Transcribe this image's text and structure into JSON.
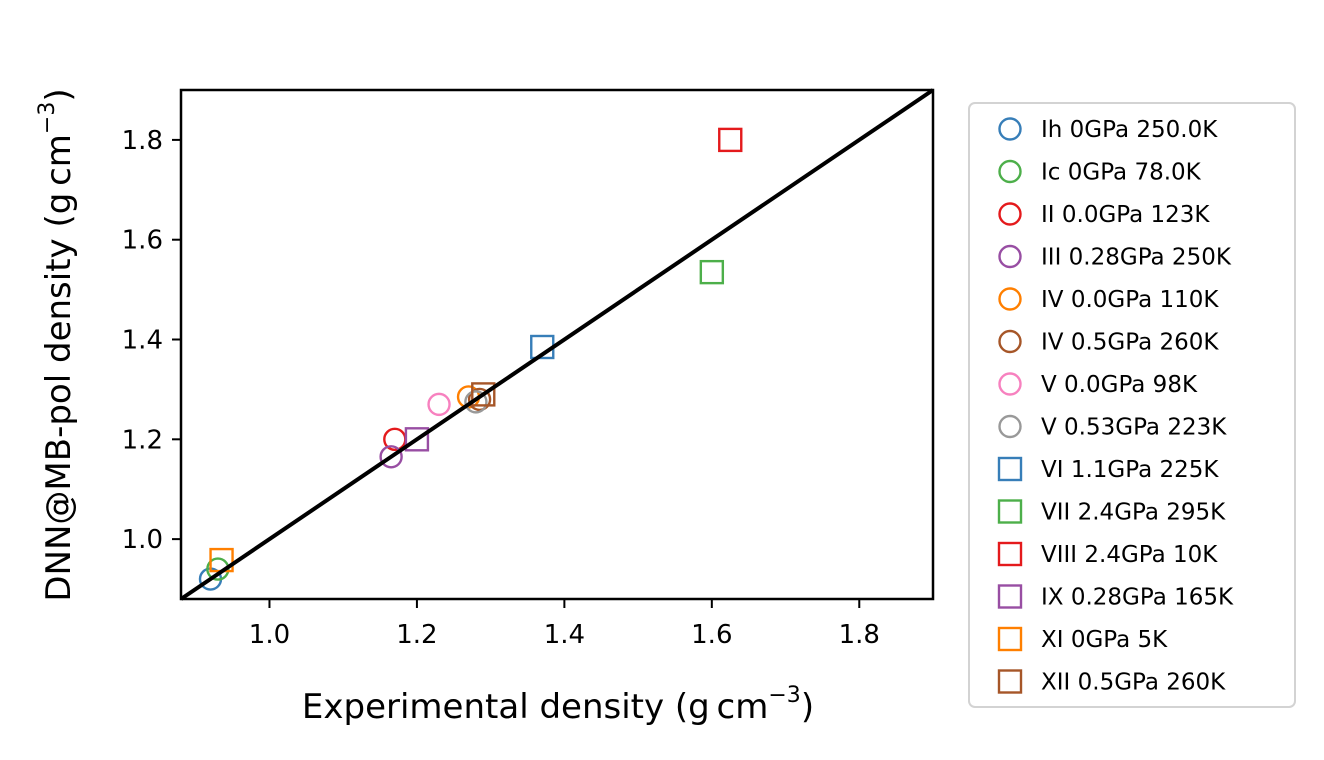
{
  "chart_data": {
    "type": "scatter",
    "xlabel": "Experimental density (g cm",
    "ylabel": "DNN@MB-pol density (g cm",
    "unit_exponent": "−3",
    "unit_close": ")",
    "xlim": [
      0.88,
      1.9
    ],
    "ylim": [
      0.88,
      1.9
    ],
    "x_ticks": [
      1.0,
      1.2,
      1.4,
      1.6,
      1.8
    ],
    "y_ticks": [
      1.0,
      1.2,
      1.4,
      1.6,
      1.8
    ],
    "x_tick_labels": [
      "1.0",
      "1.2",
      "1.4",
      "1.6",
      "1.8"
    ],
    "y_tick_labels": [
      "1.0",
      "1.2",
      "1.4",
      "1.6",
      "1.8"
    ],
    "reference_line": {
      "from": [
        0.88,
        0.88
      ],
      "to": [
        1.9,
        1.9
      ],
      "color": "#000000"
    },
    "grid": false,
    "legend_position": "outside-right",
    "series": [
      {
        "name": "Ih 0GPa 250.0K",
        "marker": "circle",
        "color": "#377eb8",
        "x": 0.92,
        "y": 0.92
      },
      {
        "name": "Ic 0GPa 78.0K",
        "marker": "circle",
        "color": "#4daf4a",
        "x": 0.93,
        "y": 0.94
      },
      {
        "name": "II 0.0GPa 123K",
        "marker": "circle",
        "color": "#e41a1c",
        "x": 1.17,
        "y": 1.2
      },
      {
        "name": "III 0.28GPa 250K",
        "marker": "circle",
        "color": "#984ea3",
        "x": 1.165,
        "y": 1.165
      },
      {
        "name": "IV 0.0GPa 110K",
        "marker": "circle",
        "color": "#ff7f00",
        "x": 1.27,
        "y": 1.285
      },
      {
        "name": "IV 0.5GPa 260K",
        "marker": "circle",
        "color": "#a65628",
        "x": 1.285,
        "y": 1.28
      },
      {
        "name": "V 0.0GPa 98K",
        "marker": "circle",
        "color": "#f781bf",
        "x": 1.23,
        "y": 1.27
      },
      {
        "name": "V 0.53GPa 223K",
        "marker": "circle",
        "color": "#999999",
        "x": 1.28,
        "y": 1.275
      },
      {
        "name": "VI 1.1GPa 225K",
        "marker": "square",
        "color": "#377eb8",
        "x": 1.37,
        "y": 1.385
      },
      {
        "name": "VII 2.4GPa 295K",
        "marker": "square",
        "color": "#4daf4a",
        "x": 1.6,
        "y": 1.535
      },
      {
        "name": "VIII 2.4GPa 10K",
        "marker": "square",
        "color": "#e41a1c",
        "x": 1.625,
        "y": 1.8
      },
      {
        "name": "IX 0.28GPa 165K",
        "marker": "square",
        "color": "#984ea3",
        "x": 1.2,
        "y": 1.2
      },
      {
        "name": "XI 0GPa 5K",
        "marker": "square",
        "color": "#ff7f00",
        "x": 0.935,
        "y": 0.958
      },
      {
        "name": "XII 0.5GPa 260K",
        "marker": "square",
        "color": "#a65628",
        "x": 1.29,
        "y": 1.29
      }
    ]
  }
}
